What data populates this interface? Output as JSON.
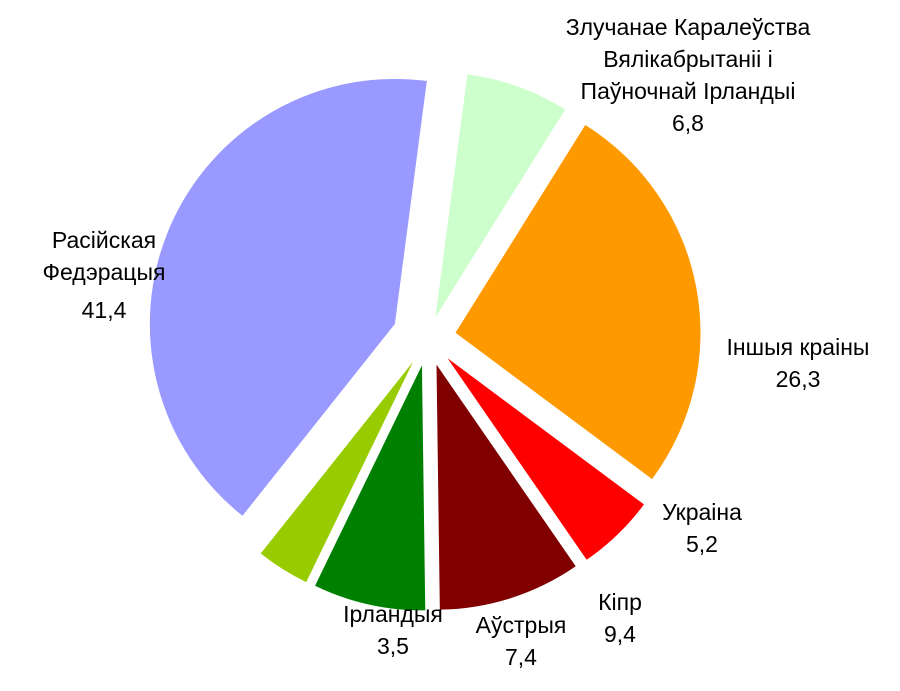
{
  "chart_data": {
    "type": "pie",
    "title": "",
    "slices": [
      {
        "lines": [
          "Злучанае Каралеўства",
          "Вялікабрытаніі і",
          "Паўночнай Ірландыі"
        ],
        "value_label": "6,8",
        "value": 6.8,
        "color": "#CCFFCC"
      },
      {
        "lines": [
          "Іншыя краіны"
        ],
        "value_label": "26,3",
        "value": 26.3,
        "color": "#FF9900"
      },
      {
        "lines": [
          "Украіна"
        ],
        "value_label": "5,2",
        "value": 5.2,
        "color": "#FF0000"
      },
      {
        "lines": [
          "Кіпр"
        ],
        "value_label": "9,4",
        "value": 9.4,
        "color": "#800000"
      },
      {
        "lines": [
          "Аўстрыя"
        ],
        "value_label": "7,4",
        "value": 7.4,
        "color": "#008000"
      },
      {
        "lines": [
          "Ірландыя"
        ],
        "value_label": "3,5",
        "value": 3.5,
        "color": "#99CC00"
      },
      {
        "lines": [
          "Расійская",
          "Федэрацыя"
        ],
        "value_label": "41,4",
        "value": 41.4,
        "color": "#9999FF"
      }
    ]
  }
}
